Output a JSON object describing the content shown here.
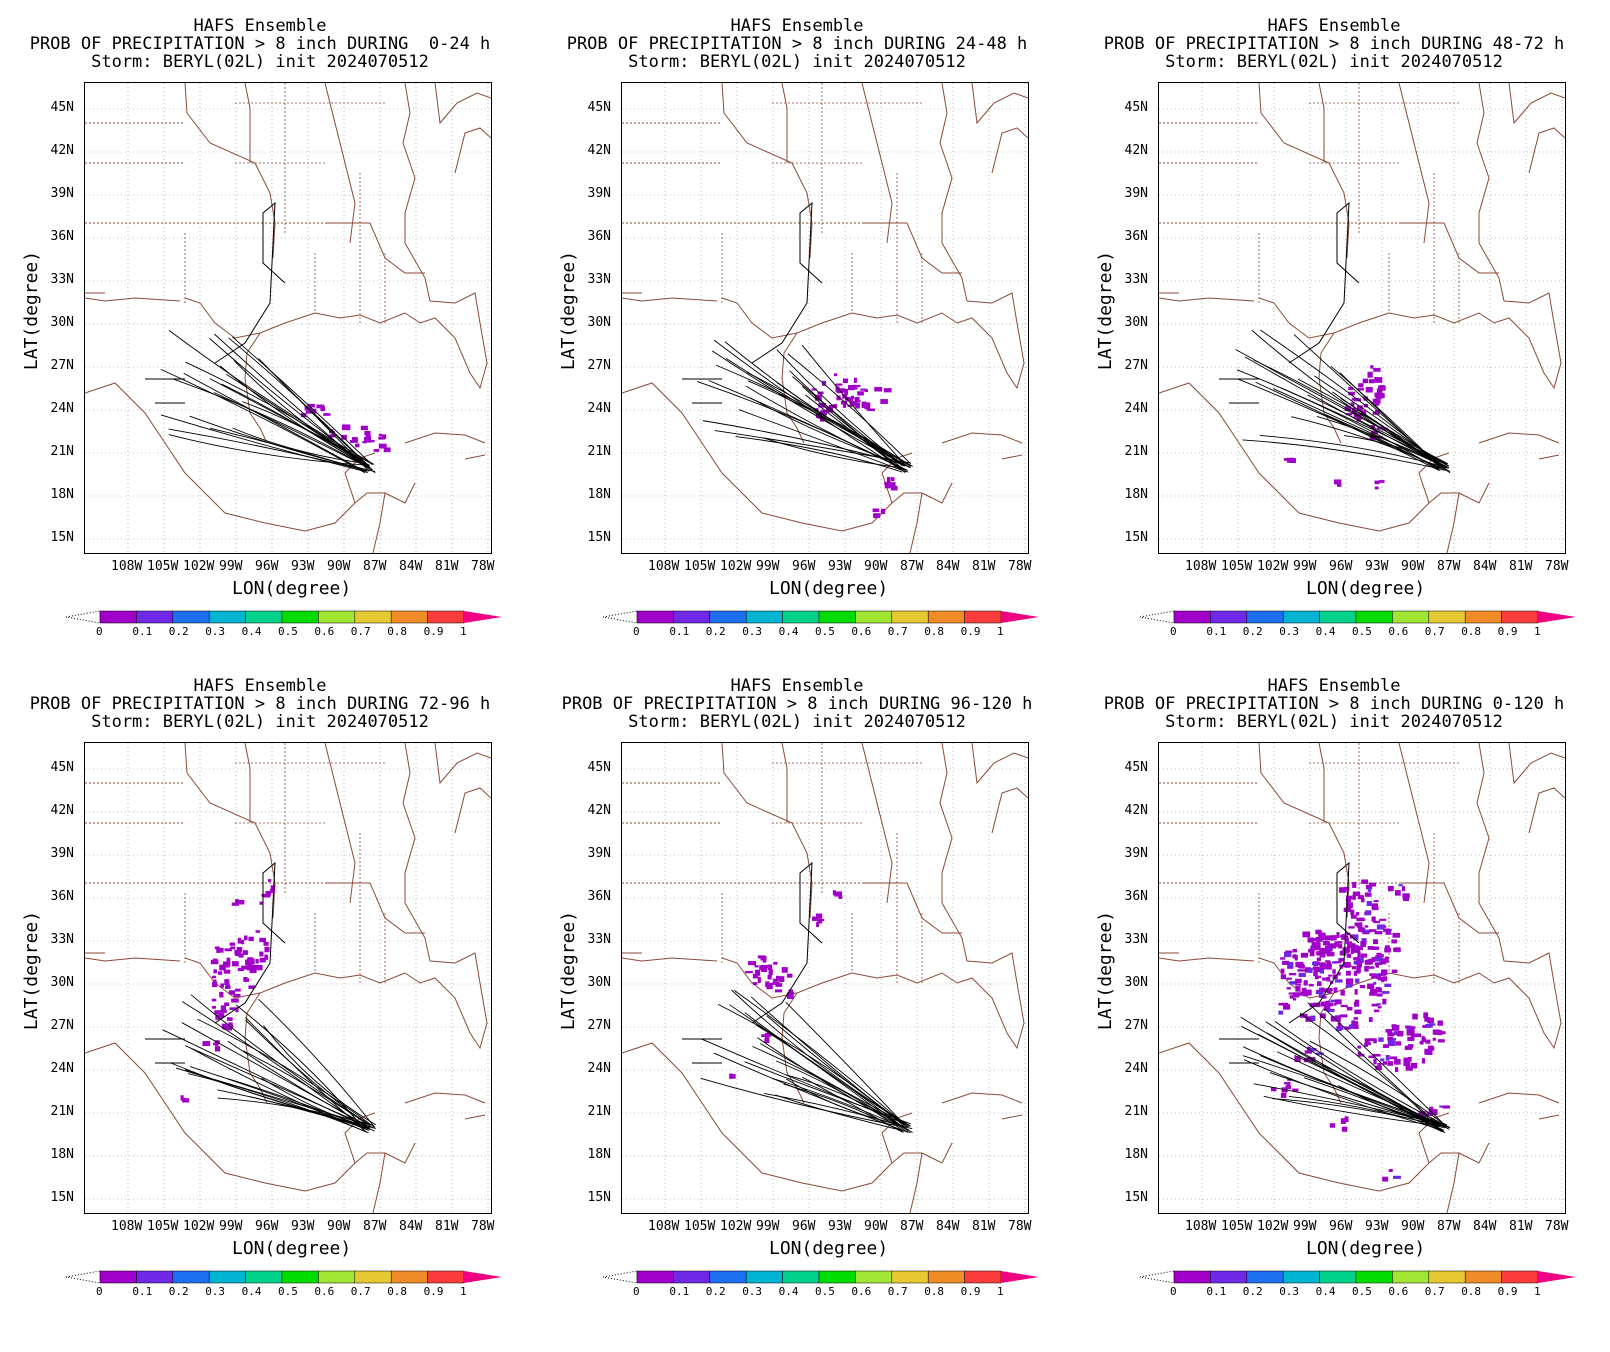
{
  "colorbar": {
    "labels": [
      "0",
      "0.1",
      "0.2",
      "0.3",
      "0.4",
      "0.5",
      "0.6",
      "0.7",
      "0.8",
      "0.9",
      "1"
    ],
    "colors": [
      "#a000c8",
      "#6e28e6",
      "#1e6ef0",
      "#00b4d2",
      "#00d28c",
      "#00dc00",
      "#a0e632",
      "#e6c832",
      "#f08c28",
      "#fa3c3c",
      "#f00082"
    ]
  },
  "axes": {
    "lat_ticks": [
      "45N",
      "42N",
      "39N",
      "36N",
      "33N",
      "30N",
      "27N",
      "24N",
      "21N",
      "18N",
      "15N"
    ],
    "lon_ticks": [
      "108W",
      "105W",
      "102W",
      "99W",
      "96W",
      "93W",
      "90W",
      "87W",
      "84W",
      "81W",
      "78W"
    ],
    "ylabel": "LAT(degree)",
    "xlabel": "LON(degree)"
  },
  "panels": [
    {
      "line1": "HAFS Ensemble",
      "line2": "PROB OF PRECIPITATION > 8 inch DURING  0-24 h",
      "line3": "Storm: BERYL(02L) init 2024070512"
    },
    {
      "line1": "HAFS Ensemble",
      "line2": "PROB OF PRECIPITATION > 8 inch DURING 24-48 h",
      "line3": "Storm: BERYL(02L) init 2024070512"
    },
    {
      "line1": "HAFS Ensemble",
      "line2": "PROB OF PRECIPITATION > 8 inch DURING 48-72 h",
      "line3": "Storm: BERYL(02L) init 2024070512"
    },
    {
      "line1": "HAFS Ensemble",
      "line2": "PROB OF PRECIPITATION > 8 inch DURING 72-96 h",
      "line3": "Storm: BERYL(02L) init 2024070512"
    },
    {
      "line1": "HAFS Ensemble",
      "line2": "PROB OF PRECIPITATION > 8 inch DURING 96-120 h",
      "line3": "Storm: BERYL(02L) init 2024070512"
    },
    {
      "line1": "HAFS Ensemble",
      "line2": "PROB OF PRECIPITATION > 8 inch DURING 0-120 h",
      "line3": "Storm: BERYL(02L) init 2024070512"
    }
  ]
}
